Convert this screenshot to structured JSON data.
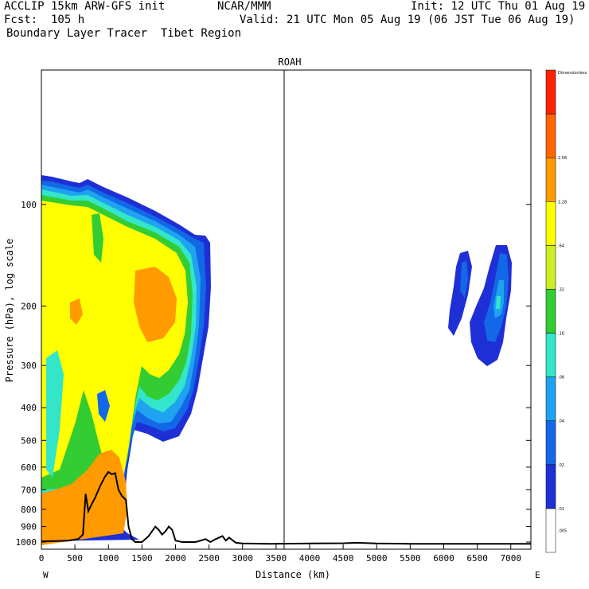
{
  "header": {
    "left_line1": "ACCLIP 15km ARW-GFS init",
    "center_line1": "NCAR/MMM",
    "right_line1": "Init: 12 UTC Thu 01 Aug 19",
    "left_line2": "Fcst:  105 h",
    "right_line2": "Valid: 21 UTC Mon 05 Aug 19 (06 JST Tue 06 Aug 19)",
    "left_line3": "Boundary Layer Tracer  Tibet Region"
  },
  "colors": {
    "c1": "#1f2fd6",
    "c2": "#1268e6",
    "c3": "#1fa3f0",
    "c4": "#33e6c9",
    "c5": "#33cc33",
    "c6": "#ccee22",
    "c7": "#ffff00",
    "c8": "#ff9a00",
    "c9": "#ff6600",
    "c10": "#ff2200",
    "terrain": "#000000"
  },
  "chart_data": {
    "type": "cross-section contour",
    "title": "ROAH",
    "xlabel": "Distance (km)",
    "ylabel": "Pressure (hPa), log scale",
    "x_range": [
      0,
      7300
    ],
    "y_range_hpa": [
      1050,
      40
    ],
    "x_ticks": [
      0,
      500,
      1000,
      1500,
      2000,
      2500,
      3000,
      3500,
      4000,
      4500,
      5000,
      5500,
      6000,
      6500,
      7000
    ],
    "x_tick_labels": [
      "0",
      "500",
      "1000",
      "1500",
      "2000",
      "2500",
      "3000",
      "3500",
      "4000",
      "4500",
      "5000",
      "5500",
      "6000",
      "6500",
      "7000"
    ],
    "y_ticks": [
      100,
      200,
      300,
      400,
      500,
      600,
      700,
      800,
      900,
      1000
    ],
    "y_tick_labels": [
      "100",
      "200",
      "300",
      "400",
      "500",
      "600",
      "700",
      "800",
      "900",
      "1000"
    ],
    "x_end_left": "W",
    "x_end_right": "E",
    "vertical_marker_km": 3620,
    "colorbar": {
      "title": "Dimensionless",
      "levels": [
        ".005",
        ".01",
        ".02",
        ".04",
        ".08",
        ".16",
        ".32",
        ".64",
        "1.28",
        "2.56"
      ]
    },
    "terrain_profile": {
      "x_km": [
        0,
        200,
        400,
        550,
        620,
        660,
        700,
        740,
        800,
        880,
        950,
        1000,
        1050,
        1100,
        1150,
        1200,
        1260,
        1300,
        1350,
        1400,
        1440,
        1500,
        1600,
        1700,
        1750,
        1800,
        1850,
        1900,
        1950,
        2000,
        2100,
        2200,
        2300,
        2450,
        2520,
        2600,
        2700,
        2750,
        2800,
        2900,
        3000,
        3400,
        4000,
        4500,
        4700,
        5000,
        5500,
        6000,
        7300
      ],
      "p_hpa": [
        995,
        993,
        990,
        980,
        950,
        720,
        810,
        780,
        740,
        680,
        640,
        620,
        630,
        625,
        700,
        730,
        750,
        900,
        980,
        1000,
        1000,
        1000,
        960,
        900,
        920,
        950,
        930,
        900,
        920,
        990,
        1000,
        1000,
        1000,
        980,
        1000,
        980,
        960,
        990,
        970,
        1005,
        1010,
        1012,
        1010,
        1008,
        1005,
        1010,
        1012,
        1012,
        1012
      ]
    }
  }
}
